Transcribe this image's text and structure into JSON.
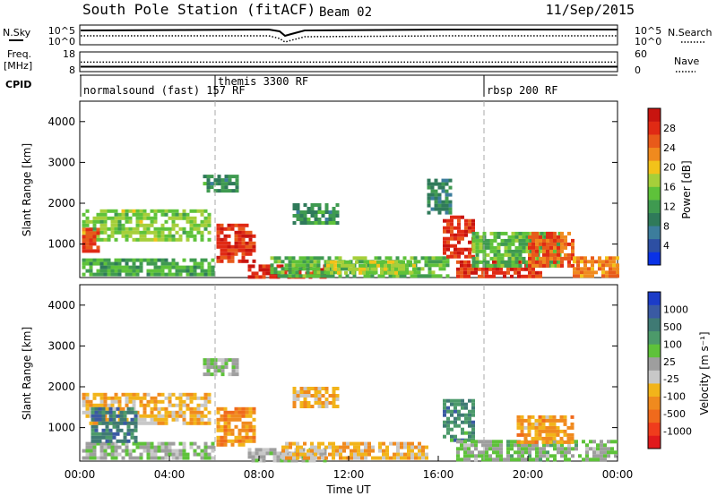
{
  "header": {
    "title": "South Pole Station (fitACF)",
    "beam": "Beam 02",
    "date": "11/Sep/2015"
  },
  "noise_panel": {
    "left_label": "N.Sky",
    "right_label": "N.Search",
    "left_ticks": [
      "10^5",
      "10^0"
    ],
    "right_ticks": [
      "10^5",
      "10^0"
    ]
  },
  "freq_panel": {
    "left_label_1": "Freq.",
    "left_label_2": "[MHz]",
    "left_ticks": [
      "18",
      "8"
    ],
    "right_label": "Nave",
    "right_ticks": [
      "60",
      "0"
    ],
    "freq_value": 10.5,
    "nave_value": 29
  },
  "cpid": {
    "label": "CPID",
    "segments": [
      {
        "name": "normalsound (fast) 157 RF",
        "start_hour": 0
      },
      {
        "name": "themis 3300 RF",
        "start_hour": 6
      },
      {
        "name": "rbsp 200 RF",
        "start_hour": 18
      }
    ]
  },
  "colors": {
    "power_scale": [
      "#0a32e6",
      "#2d4fa3",
      "#3c7d9c",
      "#2f7a5a",
      "#3f9a50",
      "#5ec23a",
      "#a6cf3a",
      "#f2c21a",
      "#f08a1e",
      "#e85a1a",
      "#e02a14",
      "#c8140f"
    ],
    "velocity_scale": [
      "#e0191c",
      "#f03c1c",
      "#f06a1c",
      "#f08a1e",
      "#f2b41a",
      "#c8c8c8",
      "#9e9e9e",
      "#5ec23a",
      "#4c9a6a",
      "#3f7a74",
      "#3a5aa3",
      "#1c3cc8"
    ]
  },
  "chart_data": [
    {
      "type": "heatmap",
      "panel": "power",
      "xlabel": "Time UT",
      "ylabel": "Slant Range [km]",
      "xlim": [
        0,
        24
      ],
      "ylim": [
        180,
        4500
      ],
      "yticks": [
        "1000",
        "2000",
        "3000",
        "4000"
      ],
      "colorbar_label": "Power [dB]",
      "colorbar_ticks": [
        "28",
        "24",
        "20",
        "16",
        "12",
        "8",
        "4"
      ],
      "colorbar_range": [
        0,
        30
      ],
      "regions": [
        {
          "t0": 0.1,
          "t1": 5.9,
          "r0": 250,
          "r1": 650,
          "level": 12
        },
        {
          "t0": 0.1,
          "t1": 5.8,
          "r0": 1100,
          "r1": 1850,
          "level": 15
        },
        {
          "t0": 0.1,
          "t1": 0.9,
          "r0": 800,
          "r1": 1400,
          "level": 25
        },
        {
          "t0": 6.1,
          "t1": 7.8,
          "r0": 600,
          "r1": 1500,
          "level": 26
        },
        {
          "t0": 7.5,
          "t1": 11.0,
          "r0": 220,
          "r1": 500,
          "level": 27
        },
        {
          "t0": 8.5,
          "t1": 16.5,
          "r0": 230,
          "r1": 700,
          "level": 13
        },
        {
          "t0": 11.0,
          "t1": 15.0,
          "r0": 280,
          "r1": 600,
          "level": 16
        },
        {
          "t0": 16.2,
          "t1": 17.5,
          "r0": 700,
          "r1": 1700,
          "level": 26
        },
        {
          "t0": 16.8,
          "t1": 20.5,
          "r0": 220,
          "r1": 600,
          "level": 26
        },
        {
          "t0": 17.5,
          "t1": 21.5,
          "r0": 500,
          "r1": 1300,
          "level": 13
        },
        {
          "t0": 20.0,
          "t1": 22.0,
          "r0": 500,
          "r1": 1300,
          "level": 24
        },
        {
          "t0": 22.0,
          "t1": 24.0,
          "r0": 220,
          "r1": 700,
          "level": 22
        },
        {
          "t0": 5.5,
          "t1": 7.0,
          "r0": 2300,
          "r1": 2700,
          "level": 10
        },
        {
          "t0": 9.5,
          "t1": 11.5,
          "r0": 1500,
          "r1": 2000,
          "level": 10
        },
        {
          "t0": 15.5,
          "t1": 16.5,
          "r0": 1800,
          "r1": 2600,
          "level": 9
        }
      ]
    },
    {
      "type": "heatmap",
      "panel": "velocity",
      "xlabel": "Time UT",
      "ylabel": "Slant Range [km]",
      "xlim": [
        0,
        24
      ],
      "ylim": [
        180,
        4500
      ],
      "yticks": [
        "1000",
        "2000",
        "3000",
        "4000"
      ],
      "xticks": [
        "00:00",
        "04:00",
        "08:00",
        "12:00",
        "16:00",
        "20:00",
        "00:00"
      ],
      "colorbar_label": "Velocity [m s⁻¹]",
      "colorbar_ticks": [
        "1000",
        "500",
        "100",
        "25",
        "-25",
        "-100",
        "-500",
        "-1000"
      ],
      "colorbar_range": [
        -1200,
        1200
      ],
      "regions": [
        {
          "t0": 0.1,
          "t1": 5.9,
          "r0": 250,
          "r1": 650,
          "level": 150
        },
        {
          "t0": 0.1,
          "t1": 5.8,
          "r0": 1100,
          "r1": 1850,
          "level": -300
        },
        {
          "t0": 0.5,
          "t1": 2.5,
          "r0": 700,
          "r1": 1500,
          "level": 700
        },
        {
          "t0": 6.1,
          "t1": 7.8,
          "r0": 600,
          "r1": 1500,
          "level": -500
        },
        {
          "t0": 7.5,
          "t1": 11.0,
          "r0": 220,
          "r1": 500,
          "level": 60
        },
        {
          "t0": 9.0,
          "t1": 15.5,
          "r0": 250,
          "r1": 650,
          "level": -300
        },
        {
          "t0": 16.2,
          "t1": 17.5,
          "r0": 700,
          "r1": 1700,
          "level": 600
        },
        {
          "t0": 16.8,
          "t1": 24.0,
          "r0": 220,
          "r1": 700,
          "level": 200
        },
        {
          "t0": 19.5,
          "t1": 22.0,
          "r0": 600,
          "r1": 1300,
          "level": -400
        },
        {
          "t0": 5.5,
          "t1": 7.0,
          "r0": 2300,
          "r1": 2700,
          "level": 100
        },
        {
          "t0": 9.5,
          "t1": 11.5,
          "r0": 1500,
          "r1": 2000,
          "level": -300
        }
      ]
    }
  ]
}
